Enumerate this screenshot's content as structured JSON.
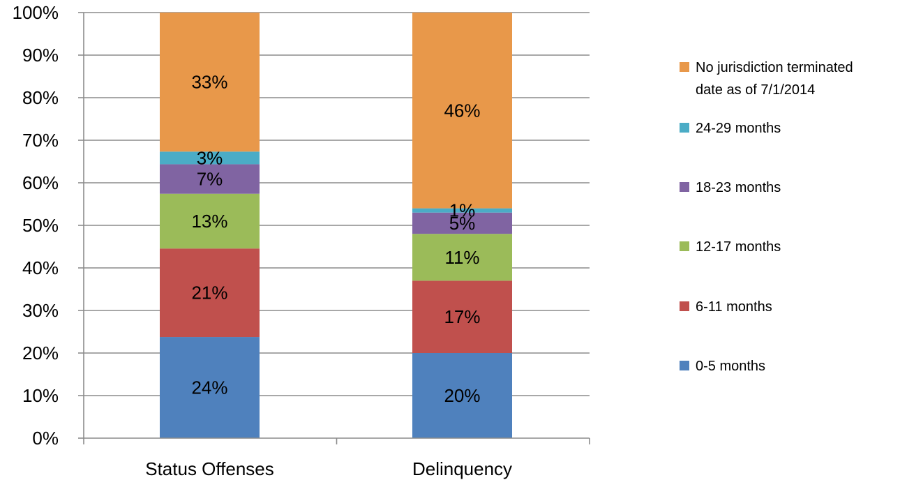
{
  "chart_data": {
    "type": "bar",
    "stacked": true,
    "percent_stacked": true,
    "categories": [
      "Status Offenses",
      "Delinquency"
    ],
    "series": [
      {
        "name": "0-5 months",
        "color": "#4f81bd",
        "values": [
          24,
          20
        ],
        "labels": [
          "24%",
          "20%"
        ]
      },
      {
        "name": "6-11 months",
        "color": "#c0504d",
        "values": [
          21,
          17
        ],
        "labels": [
          "21%",
          "17%"
        ]
      },
      {
        "name": "12-17 months",
        "color": "#9bbb59",
        "values": [
          13,
          11
        ],
        "labels": [
          "13%",
          "11%"
        ]
      },
      {
        "name": "18-23 months",
        "color": "#8064a2",
        "values": [
          7,
          5
        ],
        "labels": [
          "7%",
          "5%"
        ]
      },
      {
        "name": "24-29 months",
        "color": "#4bacc6",
        "values": [
          3,
          1
        ],
        "labels": [
          "3%",
          "1%"
        ]
      },
      {
        "name": "No jurisdiction terminated date as of 7/1/2014",
        "legend_lines": [
          "No jurisdiction terminated",
          "date as of 7/1/2014"
        ],
        "color": "#e8984a",
        "values": [
          33,
          46
        ],
        "labels": [
          "33%",
          "46%"
        ]
      }
    ],
    "y_ticks": [
      "0%",
      "10%",
      "20%",
      "30%",
      "40%",
      "50%",
      "60%",
      "70%",
      "80%",
      "90%",
      "100%"
    ],
    "ylim": [
      0,
      100
    ],
    "grid": true,
    "legend_position": "right",
    "title": "",
    "xlabel": "",
    "ylabel": ""
  }
}
